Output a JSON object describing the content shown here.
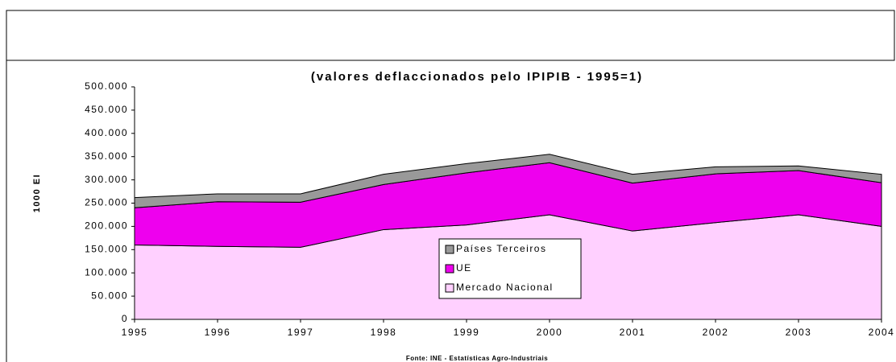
{
  "chart_data": {
    "type": "stacked_area",
    "title": "(valores deflaccionados pelo IPIPIB - 1995=1)",
    "y_label": "1000 EI",
    "source": "Fonte: INE - Estatísticas Agro-Industriais",
    "categories": [
      "1995",
      "1996",
      "1997",
      "1998",
      "1999",
      "2000",
      "2001",
      "2002",
      "2003",
      "2004"
    ],
    "series": [
      {
        "name": "Mercado Nacional",
        "color": "#ffd0ff",
        "values": [
          160000,
          157000,
          155000,
          193000,
          203000,
          225000,
          190000,
          208000,
          225000,
          200000
        ]
      },
      {
        "name": "UE",
        "color": "#ee00ee",
        "values": [
          80000,
          96000,
          97000,
          97000,
          112000,
          112000,
          103000,
          105000,
          95000,
          94000
        ]
      },
      {
        "name": "Países Terceiros",
        "color": "#999999",
        "values": [
          22000,
          17000,
          18000,
          22000,
          20000,
          18000,
          19000,
          15000,
          10000,
          18000
        ]
      }
    ],
    "ylim": [
      0,
      500000
    ],
    "yticks": [
      {
        "value": 0,
        "label": "0"
      },
      {
        "value": 50000,
        "label": "50.000"
      },
      {
        "value": 100000,
        "label": "100.000"
      },
      {
        "value": 150000,
        "label": "150.000"
      },
      {
        "value": 200000,
        "label": "200.000"
      },
      {
        "value": 250000,
        "label": "250.000"
      },
      {
        "value": 300000,
        "label": "300.000"
      },
      {
        "value": 350000,
        "label": "350.000"
      },
      {
        "value": 400000,
        "label": "400.000"
      },
      {
        "value": 450000,
        "label": "450.000"
      },
      {
        "value": 500000,
        "label": "500.000"
      }
    ],
    "legend": "center"
  }
}
